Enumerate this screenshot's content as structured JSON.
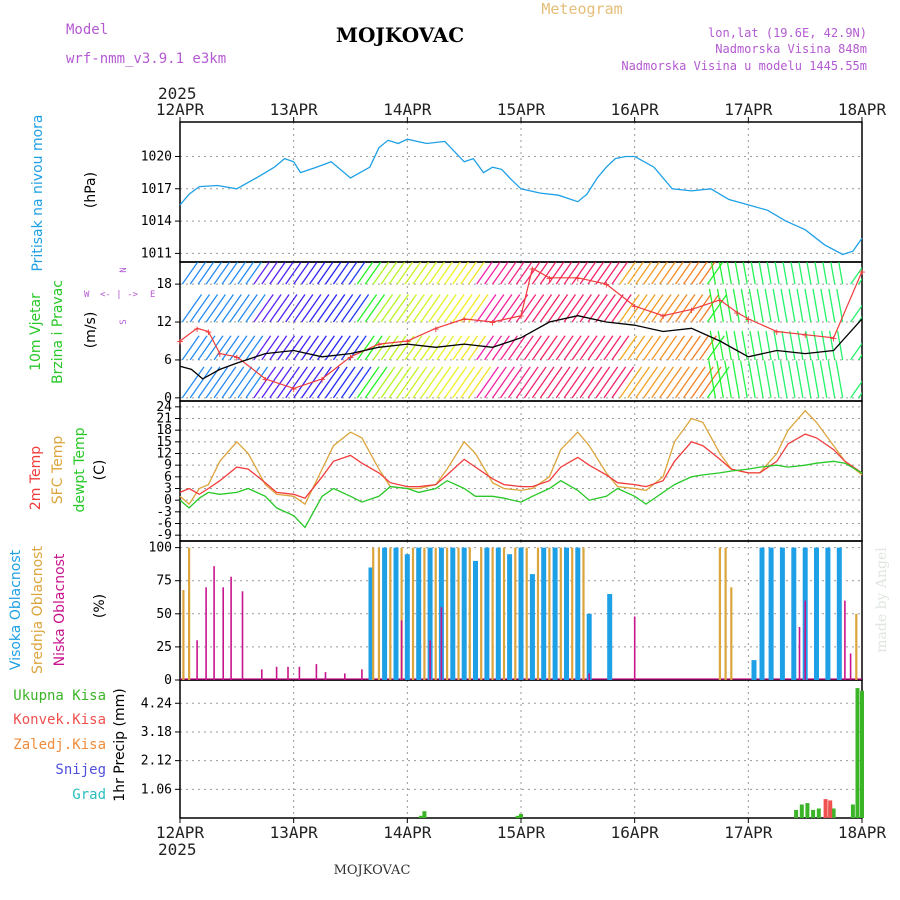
{
  "header": {
    "model_label": "Model",
    "model_name": "wrf-nmm_v3.9.1 e3km",
    "title": "MOJKOVAC",
    "product": "Meteogram",
    "lonlat": "lon,lat (19.6E, 42.9N)",
    "elevation": "Nadmorska Visina 848m",
    "model_elevation": "Nadmorska Visina u modelu 1445.55m"
  },
  "time_axis": {
    "year": "2025",
    "labels": [
      "12APR",
      "13APR",
      "14APR",
      "15APR",
      "16APR",
      "17APR",
      "18APR"
    ]
  },
  "footer": {
    "station": "MOJKOVAC"
  },
  "watermark": "made by Angel",
  "panels": {
    "pressure": {
      "title": "Pritisak na nivou mora",
      "unit": "(hPa)"
    },
    "wind": {
      "title_1": "10m Vjetar",
      "title_2": "Brzina i Pravac",
      "unit": "(m/s)",
      "legend_w": "W",
      "legend_e": "E",
      "legend_arrows": "<- | ->",
      "legend_n": "N",
      "legend_s": "S"
    },
    "temp": {
      "t2": "2m Temp",
      "sfc": "SFC Temp",
      "dew": "dewpt Temp",
      "unit": "(C)"
    },
    "cloud": {
      "high": "Visoka Oblacnost",
      "mid": "Srednja Oblacnost",
      "low": "Niska Oblacnost",
      "unit": "(%)"
    },
    "precip": {
      "ylabel": "1hr Precip (mm)",
      "total": "Ukupna Kisa",
      "conv": "Konvek.Kisa",
      "frz": "Zaledj.Kisa",
      "snow": "Snijeg",
      "graupel": "Grad"
    }
  },
  "colors": {
    "pressure": "#1ea0e6",
    "wind_speed": "#000000",
    "gust": "#f03c3c",
    "t2": "#f03c3c",
    "sfc": "#dca53c",
    "dew": "#28c828",
    "high": "#1ea0e6",
    "mid": "#dca53c",
    "low": "#c8148c",
    "total": "#3cb428",
    "conv": "#f05050",
    "frz": "#f08c3c",
    "snow": "#5050dc",
    "graupel": "#28bebe",
    "title": "#000000",
    "model": "#b45ad2",
    "product": "#e6be78"
  },
  "chart_data": [
    {
      "type": "line",
      "panel": "pressure",
      "title": "Pritisak na nivou mora",
      "ylabel": "(hPa)",
      "ylim": [
        1010.2,
        1023.2
      ],
      "yticks": [
        1011,
        1014,
        1017,
        1020
      ],
      "x_days": [
        0,
        0.08,
        0.17,
        0.33,
        0.5,
        0.67,
        0.83,
        0.92,
        1.0,
        1.06,
        1.2,
        1.33,
        1.5,
        1.67,
        1.75,
        1.83,
        1.92,
        2.0,
        2.17,
        2.33,
        2.5,
        2.58,
        2.67,
        2.75,
        2.83,
        2.92,
        3.0,
        3.17,
        3.33,
        3.5,
        3.58,
        3.67,
        3.75,
        3.83,
        3.92,
        4.0,
        4.17,
        4.33,
        4.5,
        4.67,
        4.83,
        5.0,
        5.17,
        5.33,
        5.5,
        5.67,
        5.83,
        5.92,
        6.0
      ],
      "values": [
        1015.5,
        1016.5,
        1017.2,
        1017.3,
        1017.0,
        1018.0,
        1019.0,
        1019.8,
        1019.5,
        1018.5,
        1019.0,
        1019.5,
        1018.0,
        1019.0,
        1020.8,
        1021.5,
        1021.2,
        1021.6,
        1021.2,
        1021.4,
        1019.5,
        1019.8,
        1018.5,
        1019.0,
        1018.8,
        1017.8,
        1017.0,
        1016.6,
        1016.4,
        1015.8,
        1016.5,
        1018.0,
        1019.0,
        1019.8,
        1020.0,
        1020.0,
        1019.0,
        1017.0,
        1016.8,
        1017.0,
        1016.0,
        1015.5,
        1015.0,
        1014.0,
        1013.2,
        1011.8,
        1010.9,
        1011.2,
        1012.4
      ]
    },
    {
      "type": "line",
      "panel": "wind",
      "title": "10m Vjetar Brzina i Pravac",
      "ylabel": "(m/s)",
      "ylim": [
        -0.5,
        21.5
      ],
      "yticks": [
        0,
        6,
        12,
        18
      ],
      "series": [
        {
          "name": "wind speed",
          "x_days": [
            0,
            0.1,
            0.2,
            0.35,
            0.5,
            0.75,
            1.0,
            1.25,
            1.5,
            1.75,
            2.0,
            2.25,
            2.5,
            2.75,
            3.0,
            3.25,
            3.5,
            3.75,
            4.0,
            4.25,
            4.5,
            4.75,
            5.0,
            5.25,
            5.5,
            5.75,
            6.0
          ],
          "values": [
            5.0,
            4.5,
            3.0,
            4.5,
            5.5,
            7.0,
            7.5,
            6.5,
            7.0,
            8.0,
            8.5,
            8.0,
            8.5,
            8.0,
            9.5,
            12.0,
            13.0,
            12.0,
            11.5,
            10.5,
            11.0,
            9.0,
            6.5,
            7.5,
            7.0,
            7.5,
            12.5
          ]
        },
        {
          "name": "wind gust",
          "x_days": [
            0,
            0.15,
            0.25,
            0.35,
            0.5,
            0.75,
            1.0,
            1.25,
            1.5,
            1.75,
            2.0,
            2.25,
            2.5,
            2.75,
            3.0,
            3.1,
            3.25,
            3.5,
            3.75,
            4.0,
            4.25,
            4.5,
            4.75,
            4.9,
            5.0,
            5.25,
            5.5,
            5.75,
            6.0
          ],
          "values": [
            9.0,
            11.0,
            10.5,
            7.0,
            6.5,
            3.0,
            1.5,
            3.0,
            6.5,
            8.5,
            9.0,
            11.0,
            12.5,
            12.0,
            13.0,
            20.5,
            19.0,
            19.0,
            18.0,
            14.5,
            13.0,
            14.0,
            15.5,
            13.5,
            12.5,
            10.5,
            10.0,
            9.5,
            20.0
          ]
        }
      ]
    },
    {
      "type": "line",
      "panel": "temperature",
      "title": "2m Temp / SFC Temp / dewpt Temp",
      "ylabel": "(C)",
      "ylim": [
        -10.5,
        25.5
      ],
      "yticks": [
        -9,
        -6,
        -3,
        0,
        3,
        6,
        9,
        12,
        15,
        18,
        21,
        24
      ],
      "x_days": [
        0,
        0.08,
        0.17,
        0.25,
        0.35,
        0.5,
        0.6,
        0.75,
        0.85,
        1.0,
        1.1,
        1.25,
        1.35,
        1.5,
        1.6,
        1.75,
        1.85,
        2.0,
        2.1,
        2.25,
        2.35,
        2.5,
        2.6,
        2.75,
        2.85,
        3.0,
        3.1,
        3.25,
        3.35,
        3.5,
        3.6,
        3.75,
        3.85,
        4.0,
        4.1,
        4.25,
        4.35,
        4.5,
        4.6,
        4.75,
        4.85,
        5.0,
        5.1,
        5.25,
        5.35,
        5.5,
        5.6,
        5.75,
        5.85,
        6.0
      ],
      "series": [
        {
          "name": "2m Temp",
          "values": [
            2.0,
            3.0,
            1.5,
            3.0,
            5.0,
            8.5,
            8.0,
            4.5,
            2.0,
            1.5,
            0.5,
            6.0,
            10.0,
            11.5,
            9.5,
            7.0,
            4.5,
            3.5,
            3.5,
            4.0,
            6.5,
            10.5,
            8.5,
            5.5,
            4.0,
            3.5,
            3.5,
            5.0,
            8.5,
            11.0,
            9.0,
            6.5,
            4.5,
            4.0,
            3.5,
            5.0,
            10.0,
            15.0,
            14.0,
            10.5,
            8.0,
            7.0,
            7.0,
            10.0,
            14.5,
            17.0,
            16.0,
            13.0,
            10.0,
            7.0
          ]
        },
        {
          "name": "SFC Temp",
          "values": [
            1.0,
            -1.0,
            3.0,
            4.0,
            10.0,
            15.0,
            12.0,
            4.0,
            1.5,
            1.0,
            -1.0,
            8.0,
            14.0,
            17.5,
            16.0,
            8.0,
            3.5,
            3.0,
            3.0,
            4.0,
            8.0,
            15.0,
            12.0,
            4.5,
            3.0,
            2.5,
            3.0,
            6.0,
            13.0,
            17.5,
            14.0,
            7.0,
            3.5,
            3.0,
            2.5,
            6.0,
            15.0,
            21.0,
            20.0,
            12.0,
            8.0,
            7.0,
            7.0,
            12.0,
            18.0,
            23.0,
            20.0,
            14.0,
            10.0,
            6.5
          ]
        },
        {
          "name": "dewpt Temp",
          "values": [
            0.0,
            -2.0,
            0.5,
            2.0,
            1.5,
            2.0,
            3.0,
            1.0,
            -2.0,
            -4.0,
            -7.0,
            1.0,
            3.0,
            1.0,
            -0.5,
            1.0,
            3.5,
            3.0,
            2.0,
            3.0,
            5.0,
            3.0,
            1.0,
            1.0,
            0.5,
            -0.5,
            1.0,
            3.0,
            5.0,
            2.5,
            0.0,
            1.0,
            3.0,
            1.0,
            -1.0,
            2.0,
            4.0,
            6.0,
            6.5,
            7.0,
            7.5,
            8.0,
            8.5,
            9.0,
            8.5,
            9.0,
            9.5,
            10.0,
            9.5,
            7.0
          ]
        }
      ]
    },
    {
      "type": "bar",
      "panel": "cloud",
      "title": "Visoka / Srednja / Niska Oblacnost",
      "ylabel": "(%)",
      "ylim": [
        0,
        105
      ],
      "yticks": [
        0,
        25,
        50,
        75,
        100
      ],
      "series": [
        {
          "name": "Visoka Oblacnost",
          "x_days": [
            1.68,
            1.8,
            1.9,
            2.0,
            2.1,
            2.2,
            2.3,
            2.4,
            2.5,
            2.6,
            2.7,
            2.8,
            2.9,
            3.0,
            3.1,
            3.2,
            3.3,
            3.4,
            3.5,
            3.6,
            3.78,
            5.05,
            5.12,
            5.2,
            5.3,
            5.4,
            5.5,
            5.6,
            5.7,
            5.8
          ],
          "values": [
            85,
            100,
            100,
            95,
            100,
            100,
            100,
            100,
            100,
            90,
            100,
            100,
            95,
            100,
            80,
            100,
            100,
            100,
            100,
            50,
            65,
            15,
            100,
            100,
            100,
            100,
            100,
            100,
            100,
            100
          ]
        },
        {
          "name": "Srednja Oblacnost",
          "x_days": [
            0.03,
            0.08,
            1.7,
            1.75,
            1.85,
            1.95,
            2.05,
            2.15,
            2.25,
            2.35,
            2.45,
            2.55,
            2.65,
            2.75,
            2.85,
            2.95,
            3.05,
            3.15,
            3.25,
            3.35,
            3.45,
            3.55,
            4.75,
            4.8,
            4.85,
            5.95
          ],
          "values": [
            68,
            100,
            100,
            100,
            100,
            100,
            100,
            100,
            100,
            100,
            100,
            100,
            100,
            100,
            100,
            100,
            100,
            100,
            100,
            100,
            100,
            100,
            100,
            100,
            70,
            50
          ]
        },
        {
          "name": "Niska Oblacnost",
          "x_days": [
            0.15,
            0.23,
            0.3,
            0.38,
            0.45,
            0.55,
            0.72,
            0.85,
            0.95,
            1.05,
            1.2,
            1.28,
            1.45,
            1.6,
            1.95,
            2.2,
            2.3,
            3.6,
            4.0,
            5.45,
            5.5,
            5.85,
            5.9
          ],
          "values": [
            30,
            70,
            86,
            70,
            78,
            67,
            8,
            10,
            10,
            10,
            12,
            6,
            5,
            8,
            45,
            30,
            55,
            5,
            48,
            40,
            60,
            60,
            20
          ]
        }
      ]
    },
    {
      "type": "bar",
      "panel": "precipitation",
      "title": "1hr Precip (mm)",
      "ylabel": "1hr Precip (mm)",
      "ylim": [
        0,
        5.1
      ],
      "yticks": [
        1.06,
        2.12,
        3.18,
        4.24
      ],
      "series": [
        {
          "name": "Ukupna Kisa",
          "x_days": [
            2.12,
            2.15,
            2.97,
            3.0,
            5.42,
            5.47,
            5.52,
            5.57,
            5.62,
            5.72,
            5.75,
            5.92,
            5.96,
            6.0
          ],
          "values": [
            0.08,
            0.25,
            0.08,
            0.15,
            0.3,
            0.5,
            0.55,
            0.3,
            0.35,
            0.45,
            0.35,
            0.5,
            4.8,
            4.7
          ]
        },
        {
          "name": "Konvek.Kisa",
          "x_days": [
            5.68,
            5.72
          ],
          "values": [
            0.7,
            0.65
          ]
        },
        {
          "name": "Zaledj.Kisa",
          "x_days": [],
          "values": []
        },
        {
          "name": "Snijeg",
          "x_days": [],
          "values": []
        },
        {
          "name": "Grad",
          "x_days": [],
          "values": []
        }
      ]
    }
  ]
}
